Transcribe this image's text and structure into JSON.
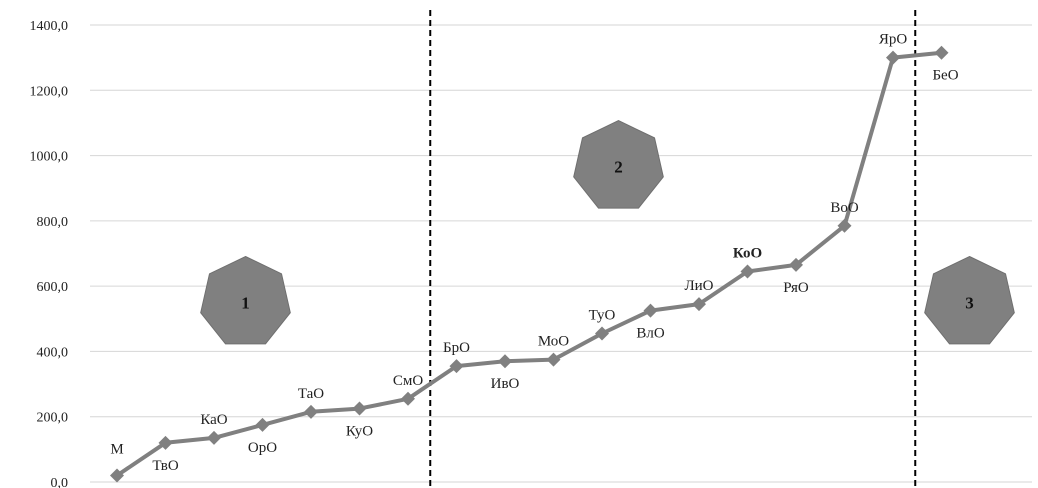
{
  "chart_data": {
    "type": "line",
    "title": "",
    "xlabel": "",
    "ylabel": "",
    "ylim": [
      0,
      1400
    ],
    "ytick_step": 200,
    "ytick_labels": [
      "0,0",
      "200,0",
      "400,0",
      "600,0",
      "800,0",
      "1000,0",
      "1200,0",
      "1400,0"
    ],
    "grid": "horizontal",
    "categories": [
      "М",
      "ТвО",
      "КаО",
      "ОрО",
      "ТаО",
      "КуО",
      "СмО",
      "БрО",
      "ИвО",
      "МоО",
      "ТуО",
      "ВлО",
      "ЛиО",
      "КоО",
      "РяО",
      "ВоО",
      "ЯрО",
      "БеО"
    ],
    "values": [
      20,
      120,
      135,
      175,
      215,
      225,
      255,
      355,
      370,
      375,
      455,
      525,
      545,
      645,
      665,
      785,
      1300,
      1315
    ],
    "series_color": "#808080",
    "label_positions": [
      "above",
      "below",
      "above",
      "below",
      "above",
      "below",
      "above",
      "above",
      "below",
      "above",
      "above",
      "below",
      "above",
      "above",
      "below",
      "above",
      "above",
      "below"
    ],
    "bold_labels": [
      "КоО"
    ],
    "dividers_after_index": [
      6,
      16
    ],
    "zones": [
      {
        "label": "1",
        "after_index": 3,
        "value": 550
      },
      {
        "label": "2",
        "after_index": 11,
        "value": 960
      },
      {
        "label": "3",
        "after_index": 17,
        "value": 550
      }
    ],
    "zone_color": "#808080"
  }
}
